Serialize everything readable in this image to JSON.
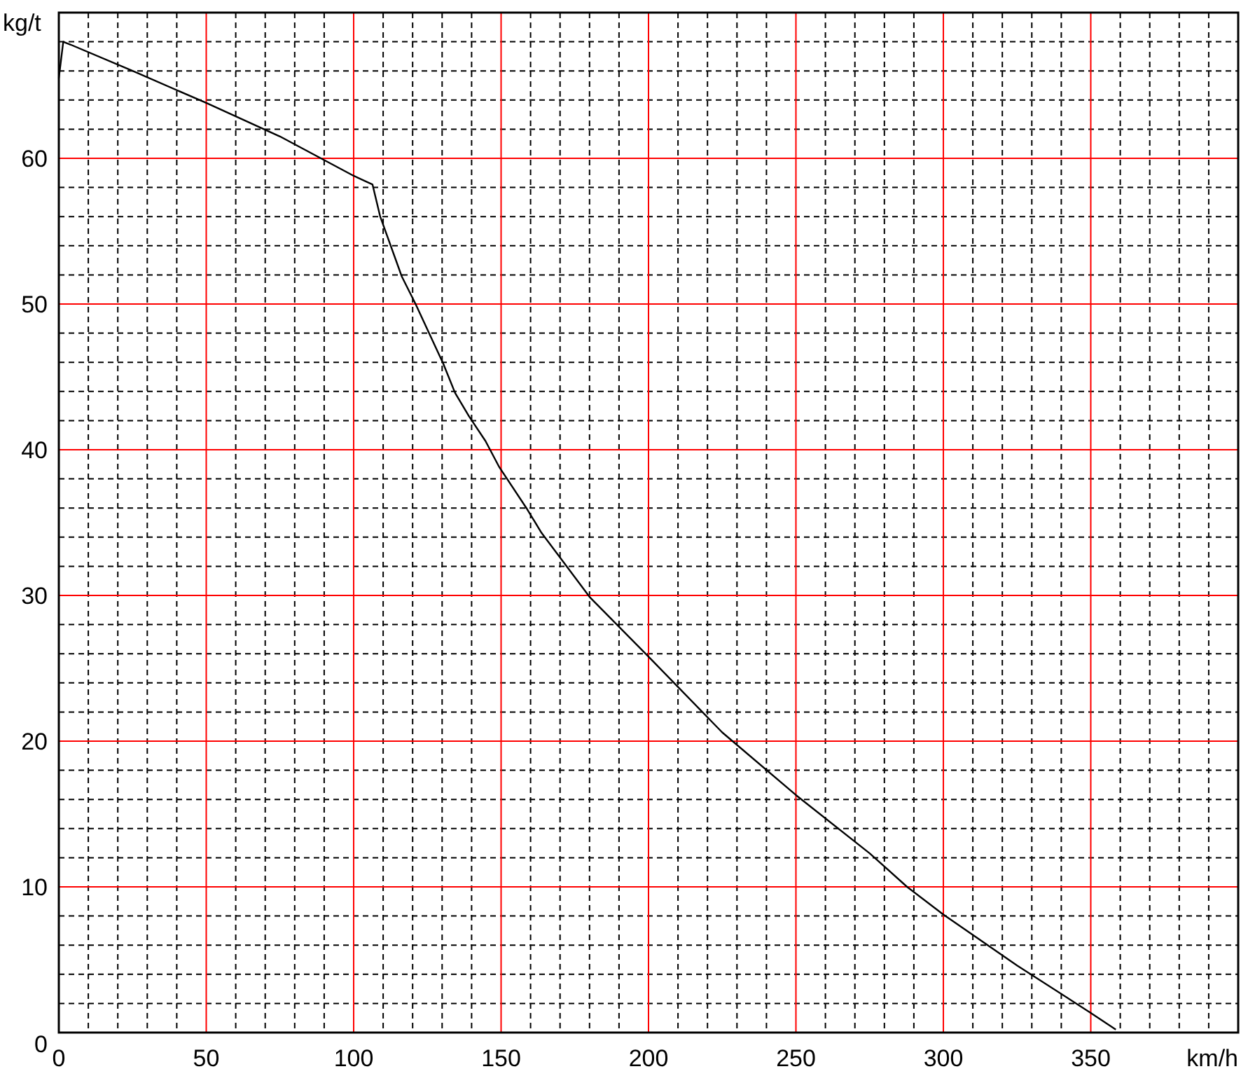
{
  "chart_data": {
    "type": "line",
    "xlabel": "km/h",
    "ylabel": "kg/t",
    "xlim": [
      0,
      400
    ],
    "ylim": [
      0,
      70
    ],
    "xticks": [
      0,
      {
        "value": 10,
        "label": null
      },
      {
        "value": 20,
        "label": null
      },
      {
        "value": 30,
        "label": null
      },
      {
        "value": 40,
        "label": null
      },
      50,
      {
        "value": 60,
        "label": null
      },
      {
        "value": 70,
        "label": null
      },
      {
        "value": 80,
        "label": null
      },
      {
        "value": 90,
        "label": null
      },
      100,
      {
        "value": 110,
        "label": null
      },
      {
        "value": 120,
        "label": null
      },
      {
        "value": 130,
        "label": null
      },
      {
        "value": 140,
        "label": null
      },
      150,
      {
        "value": 160,
        "label": null
      },
      {
        "value": 170,
        "label": null
      },
      {
        "value": 180,
        "label": null
      },
      {
        "value": 190,
        "label": null
      },
      200,
      {
        "value": 210,
        "label": null
      },
      {
        "value": 220,
        "label": null
      },
      {
        "value": 230,
        "label": null
      },
      {
        "value": 240,
        "label": null
      },
      250,
      {
        "value": 260,
        "label": null
      },
      {
        "value": 270,
        "label": null
      },
      {
        "value": 280,
        "label": null
      },
      {
        "value": 290,
        "label": null
      },
      300,
      {
        "value": 310,
        "label": null
      },
      {
        "value": 320,
        "label": null
      },
      {
        "value": 330,
        "label": null
      },
      {
        "value": 340,
        "label": null
      },
      350,
      {
        "value": 360,
        "label": null
      },
      {
        "value": 370,
        "label": null
      },
      {
        "value": 380,
        "label": null
      },
      {
        "value": 390,
        "label": null
      }
    ],
    "yticks": [
      0,
      {
        "value": 2,
        "label": null
      },
      {
        "value": 4,
        "label": null
      },
      {
        "value": 6,
        "label": null
      },
      {
        "value": 8,
        "label": null
      },
      10,
      {
        "value": 12,
        "label": null
      },
      {
        "value": 14,
        "label": null
      },
      {
        "value": 16,
        "label": null
      },
      {
        "value": 18,
        "label": null
      },
      20,
      {
        "value": 22,
        "label": null
      },
      {
        "value": 24,
        "label": null
      },
      {
        "value": 26,
        "label": null
      },
      {
        "value": 28,
        "label": null
      },
      30,
      {
        "value": 32,
        "label": null
      },
      {
        "value": 34,
        "label": null
      },
      {
        "value": 36,
        "label": null
      },
      {
        "value": 38,
        "label": null
      },
      40,
      {
        "value": 42,
        "label": null
      },
      {
        "value": 44,
        "label": null
      },
      {
        "value": 46,
        "label": null
      },
      {
        "value": 48,
        "label": null
      },
      50,
      {
        "value": 52,
        "label": null
      },
      {
        "value": 54,
        "label": null
      },
      {
        "value": 56,
        "label": null
      },
      {
        "value": 58,
        "label": null
      },
      60,
      {
        "value": 62,
        "label": null
      },
      {
        "value": 64,
        "label": null
      },
      {
        "value": 66,
        "label": null
      },
      {
        "value": 68,
        "label": null
      }
    ],
    "grid": true,
    "series": [
      {
        "color": "#000000",
        "x": [
          0,
          1.5,
          4,
          25,
          50,
          75,
          100,
          106.4,
          109,
          116.3,
          121,
          130.4,
          134.4,
          139.1,
          144.7,
          149.4,
          158.9,
          163.7,
          180,
          200,
          225,
          250,
          275,
          287.7,
          300,
          325,
          350,
          358.5
        ],
        "values": [
          65.5,
          68,
          67.8,
          66,
          63.8,
          61.5,
          58.8,
          58.2,
          56,
          51.9,
          50,
          45.9,
          43.9,
          42.3,
          40.6,
          38.8,
          35.9,
          34.3,
          29.9,
          25.8,
          20.6,
          16.3,
          12.3,
          10,
          8.1,
          4.6,
          1.35,
          0.2
        ]
      }
    ]
  }
}
